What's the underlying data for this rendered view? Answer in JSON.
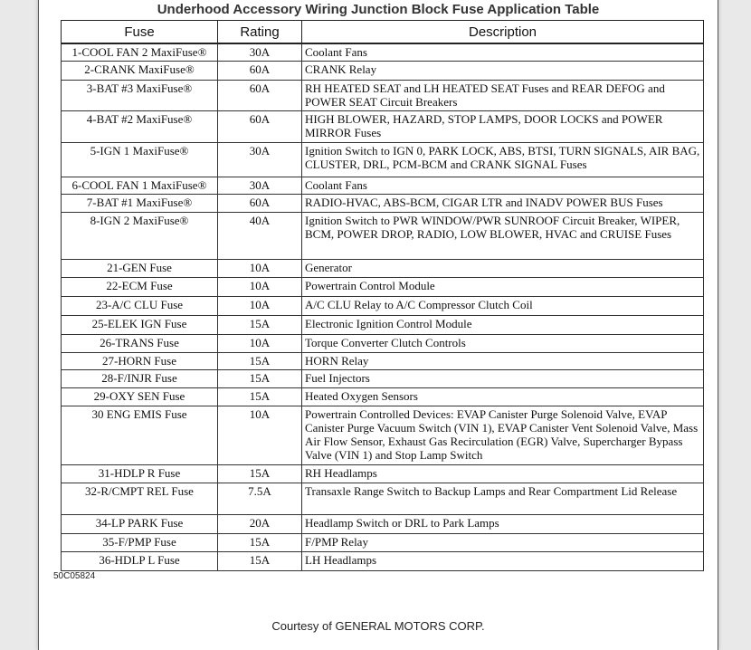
{
  "title": "Underhood Accessory Wiring Junction Block Fuse Application Table",
  "headers": {
    "fuse": "Fuse",
    "rating": "Rating",
    "description": "Description"
  },
  "rows": [
    {
      "fuse": "1-COOL FAN 2 MaxiFuse®",
      "rating": "30A",
      "description": "Coolant Fans"
    },
    {
      "fuse": "2-CRANK MaxiFuse®",
      "rating": "60A",
      "description": "CRANK Relay"
    },
    {
      "fuse": "3-BAT #3 MaxiFuse®",
      "rating": "60A",
      "description": "RH HEATED SEAT and LH HEATED SEAT Fuses and REAR DEFOG and POWER SEAT Circuit Breakers"
    },
    {
      "fuse": "4-BAT #2 MaxiFuse®",
      "rating": "60A",
      "description": "HIGH BLOWER, HAZARD, STOP LAMPS, DOOR LOCKS and POWER MIRROR Fuses"
    },
    {
      "fuse": "5-IGN 1 MaxiFuse®",
      "rating": "30A",
      "description": "Ignition Switch to IGN 0, PARK LOCK, ABS, BTSI, TURN SIGNALS, AIR BAG, CLUSTER, DRL, PCM-BCM and CRANK SIGNAL Fuses"
    },
    {
      "fuse": "6-COOL FAN 1 MaxiFuse®",
      "rating": "30A",
      "description": "Coolant Fans"
    },
    {
      "fuse": "7-BAT #1 MaxiFuse®",
      "rating": "60A",
      "description": "RADIO-HVAC, ABS-BCM, CIGAR LTR and INADV POWER BUS Fuses"
    },
    {
      "fuse": "8-IGN 2 MaxiFuse®",
      "rating": "40A",
      "description": "Ignition Switch to PWR WINDOW/PWR SUNROOF Circuit Breaker, WIPER, BCM, POWER DROP, RADIO, LOW BLOWER, HVAC and CRUISE Fuses"
    },
    {
      "fuse": "21-GEN Fuse",
      "rating": "10A",
      "description": "Generator"
    },
    {
      "fuse": "22-ECM Fuse",
      "rating": "10A",
      "description": "Powertrain Control Module"
    },
    {
      "fuse": "23-A/C CLU Fuse",
      "rating": "10A",
      "description": "A/C CLU Relay to A/C Compressor Clutch Coil"
    },
    {
      "fuse": "25-ELEK IGN Fuse",
      "rating": "15A",
      "description": "Electronic Ignition Control Module"
    },
    {
      "fuse": "26-TRANS Fuse",
      "rating": "10A",
      "description": "Torque Converter Clutch Controls"
    },
    {
      "fuse": "27-HORN Fuse",
      "rating": "15A",
      "description": "HORN Relay"
    },
    {
      "fuse": "28-F/INJR Fuse",
      "rating": "15A",
      "description": "Fuel Injectors"
    },
    {
      "fuse": "29-OXY SEN Fuse",
      "rating": "15A",
      "description": "Heated Oxygen Sensors"
    },
    {
      "fuse": "30 ENG EMIS Fuse",
      "rating": "10A",
      "description": "Powertrain Controlled Devices: EVAP Canister Purge Solenoid Valve, EVAP Canister Purge Vacuum Switch (VIN 1), EVAP Canister Vent Solenoid Valve, Mass Air Flow Sensor, Exhaust Gas Recirculation (EGR) Valve, Supercharger Bypass Valve (VIN 1) and Stop Lamp Switch"
    },
    {
      "fuse": "31-HDLP R Fuse",
      "rating": "15A",
      "description": "RH Headlamps"
    },
    {
      "fuse": "32-R/CMPT REL Fuse",
      "rating": "7.5A",
      "description": "Transaxle Range Switch to Backup Lamps and Rear Compartment Lid Release"
    },
    {
      "fuse": "34-LP PARK Fuse",
      "rating": "20A",
      "description": "Headlamp Switch or DRL to Park Lamps"
    },
    {
      "fuse": "35-F/PMP Fuse",
      "rating": "15A",
      "description": "F/PMP Relay"
    },
    {
      "fuse": "36-HDLP L Fuse",
      "rating": "15A",
      "description": "LH Headlamps"
    }
  ],
  "figure_code": "50C05824",
  "courtesy": "Courtesy of GENERAL MOTORS CORP."
}
